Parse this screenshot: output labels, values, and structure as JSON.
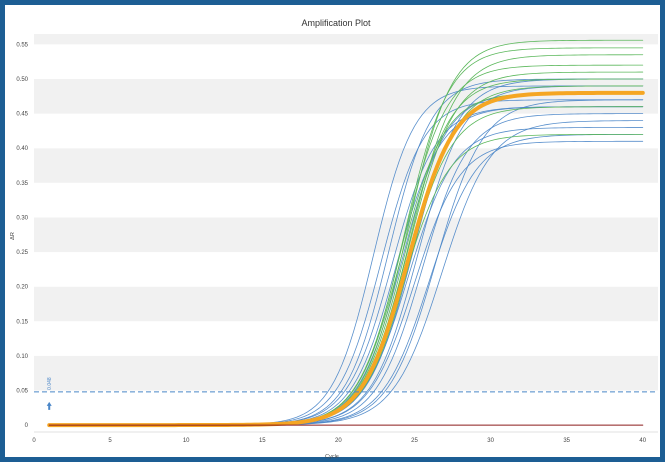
{
  "chart_data": {
    "type": "line",
    "title": "Amplification Plot",
    "xlabel": "Cycle",
    "ylabel": "ΔR",
    "xlim": [
      0,
      41
    ],
    "ylim": [
      -0.01,
      0.565
    ],
    "x_ticks": [
      0,
      5,
      10,
      15,
      20,
      25,
      30,
      35,
      40
    ],
    "y_ticks": [
      0,
      0.05,
      0.1,
      0.15,
      0.2,
      0.25,
      0.3,
      0.35,
      0.4,
      0.45,
      0.5,
      0.55
    ],
    "x_tick_labels": [
      "0",
      "5",
      "10",
      "15",
      "20",
      "25",
      "30",
      "35",
      "40"
    ],
    "y_tick_labels": [
      "0",
      "0.05",
      "0.10",
      "0.15",
      "0.20",
      "0.25",
      "0.30",
      "0.35",
      "0.40",
      "0.45",
      "0.50",
      "0.55"
    ],
    "x_range": [
      1,
      40
    ],
    "grid": "horizontal alternating bands",
    "threshold": {
      "value": 0.048,
      "label": "0.048",
      "color": "#4a86c8"
    },
    "colors": {
      "blue": "#4a86c8",
      "green": "#5cb85c",
      "orange": "#f5a623",
      "red": "#8b1a1a"
    },
    "series": [
      {
        "group": "blue",
        "plateau": 0.49,
        "midpoint": 22.3,
        "slope": 1.35
      },
      {
        "group": "blue",
        "plateau": 0.47,
        "midpoint": 22.8,
        "slope": 1.4
      },
      {
        "group": "blue",
        "plateau": 0.5,
        "midpoint": 23.3,
        "slope": 1.4
      },
      {
        "group": "blue",
        "plateau": 0.46,
        "midpoint": 23.8,
        "slope": 1.45
      },
      {
        "group": "blue",
        "plateau": 0.48,
        "midpoint": 24.2,
        "slope": 1.45
      },
      {
        "group": "blue",
        "plateau": 0.43,
        "midpoint": 24.6,
        "slope": 1.5
      },
      {
        "group": "blue",
        "plateau": 0.41,
        "midpoint": 25.0,
        "slope": 1.5
      },
      {
        "group": "blue",
        "plateau": 0.45,
        "midpoint": 25.5,
        "slope": 1.5
      },
      {
        "group": "blue",
        "plateau": 0.42,
        "midpoint": 26.0,
        "slope": 1.55
      },
      {
        "group": "blue",
        "plateau": 0.47,
        "midpoint": 26.4,
        "slope": 1.55
      },
      {
        "group": "blue",
        "plateau": 0.44,
        "midpoint": 26.8,
        "slope": 1.6
      },
      {
        "group": "blue",
        "plateau": 0.49,
        "midpoint": 25.2,
        "slope": 1.5
      },
      {
        "group": "blue",
        "plateau": 0.46,
        "midpoint": 23.5,
        "slope": 1.45
      },
      {
        "group": "blue",
        "plateau": 0.5,
        "midpoint": 24.9,
        "slope": 1.5
      },
      {
        "group": "green",
        "plateau": 0.556,
        "midpoint": 24.5,
        "slope": 1.45
      },
      {
        "group": "green",
        "plateau": 0.545,
        "midpoint": 24.3,
        "slope": 1.45
      },
      {
        "group": "green",
        "plateau": 0.535,
        "midpoint": 24.7,
        "slope": 1.5
      },
      {
        "group": "green",
        "plateau": 0.52,
        "midpoint": 24.2,
        "slope": 1.45
      },
      {
        "group": "green",
        "plateau": 0.51,
        "midpoint": 24.6,
        "slope": 1.5
      },
      {
        "group": "green",
        "plateau": 0.5,
        "midpoint": 24.4,
        "slope": 1.45
      },
      {
        "group": "green",
        "plateau": 0.49,
        "midpoint": 24.8,
        "slope": 1.5
      },
      {
        "group": "green",
        "plateau": 0.48,
        "midpoint": 24.1,
        "slope": 1.45
      },
      {
        "group": "green",
        "plateau": 0.46,
        "midpoint": 24.5,
        "slope": 1.5
      },
      {
        "group": "green",
        "plateau": 0.42,
        "midpoint": 24.3,
        "slope": 1.5
      },
      {
        "group": "orange",
        "plateau": 0.48,
        "midpoint": 24.6,
        "slope": 1.5
      },
      {
        "group": "red",
        "plateau": 0.0,
        "midpoint": 24.0,
        "slope": 1.5
      }
    ]
  }
}
